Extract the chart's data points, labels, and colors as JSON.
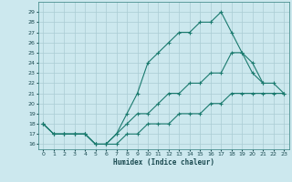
{
  "title": "",
  "xlabel": "Humidex (Indice chaleur)",
  "bg_color": "#cce8ee",
  "grid_color": "#aaccd4",
  "line_color": "#1a7a6e",
  "xlim": [
    -0.5,
    23.5
  ],
  "ylim": [
    15.5,
    30.0
  ],
  "yticks": [
    16,
    17,
    18,
    19,
    20,
    21,
    22,
    23,
    24,
    25,
    26,
    27,
    28,
    29
  ],
  "xticks": [
    0,
    1,
    2,
    3,
    4,
    5,
    6,
    7,
    8,
    9,
    10,
    11,
    12,
    13,
    14,
    15,
    16,
    17,
    18,
    19,
    20,
    21,
    22,
    23
  ],
  "line1_x": [
    0,
    1,
    2,
    3,
    4,
    5,
    6,
    7,
    8,
    9,
    10,
    11,
    12,
    13,
    14,
    15,
    16,
    17,
    18,
    19,
    20,
    21
  ],
  "line1_y": [
    18,
    17,
    17,
    17,
    17,
    16,
    16,
    17,
    19,
    21,
    24,
    25,
    26,
    27,
    27,
    28,
    28,
    29,
    27,
    25,
    23,
    22
  ],
  "line2_x": [
    0,
    1,
    2,
    3,
    4,
    5,
    6,
    7,
    8,
    9,
    10,
    11,
    12,
    13,
    14,
    15,
    16,
    17,
    18,
    19,
    20,
    21,
    22,
    23
  ],
  "line2_y": [
    18,
    17,
    17,
    17,
    17,
    16,
    16,
    17,
    18,
    19,
    19,
    20,
    21,
    21,
    22,
    22,
    23,
    23,
    25,
    25,
    24,
    22,
    22,
    21
  ],
  "line3_x": [
    0,
    1,
    2,
    3,
    4,
    5,
    6,
    7,
    8,
    9,
    10,
    11,
    12,
    13,
    14,
    15,
    16,
    17,
    18,
    19,
    20,
    21,
    22,
    23
  ],
  "line3_y": [
    18,
    17,
    17,
    17,
    17,
    16,
    16,
    16,
    17,
    17,
    18,
    18,
    18,
    19,
    19,
    19,
    20,
    20,
    21,
    21,
    21,
    21,
    21,
    21
  ]
}
